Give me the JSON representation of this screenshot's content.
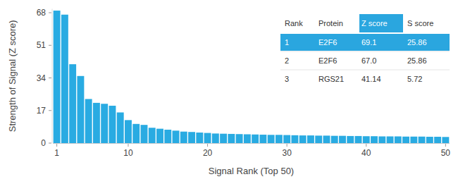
{
  "chart_data": {
    "type": "bar",
    "x_label": "Signal Rank (Top 50)",
    "y_label": "Strength of Signal (Z score)",
    "x": [
      1,
      2,
      3,
      4,
      5,
      6,
      7,
      8,
      9,
      10,
      11,
      12,
      13,
      14,
      15,
      16,
      17,
      18,
      19,
      20,
      21,
      22,
      23,
      24,
      25,
      26,
      27,
      28,
      29,
      30,
      31,
      32,
      33,
      34,
      35,
      36,
      37,
      38,
      39,
      40,
      41,
      42,
      43,
      44,
      45,
      46,
      47,
      48,
      49,
      50
    ],
    "values": [
      69.1,
      67.0,
      41.14,
      35.0,
      23.0,
      21.0,
      20.5,
      19.5,
      16.0,
      12.0,
      10.0,
      9.5,
      8.0,
      7.5,
      7.0,
      6.5,
      6.0,
      5.8,
      5.5,
      5.3,
      5.0,
      4.9,
      4.8,
      4.7,
      4.6,
      4.5,
      4.4,
      4.3,
      4.3,
      4.2,
      4.1,
      4.0,
      4.0,
      3.9,
      3.9,
      3.8,
      3.8,
      3.7,
      3.7,
      3.6,
      3.6,
      3.5,
      3.5,
      3.5,
      3.4,
      3.4,
      3.4,
      3.3,
      3.3,
      3.2
    ],
    "color": "#29abe2",
    "xlim": [
      0.5,
      50.5
    ],
    "xticks": [
      1,
      10,
      20,
      30,
      40,
      50
    ],
    "ylim": [
      0,
      70
    ],
    "yticks": [
      0,
      17,
      34,
      51,
      68
    ],
    "grid": false
  },
  "table": {
    "columns": [
      "Rank",
      "Protein",
      "Z score",
      "S score"
    ],
    "rows": [
      [
        "1",
        "E2F6",
        "69.1",
        "25.86"
      ],
      [
        "2",
        "E2F6",
        "67.0",
        "25.86"
      ],
      [
        "3",
        "RGS21",
        "41.14",
        "5.72"
      ]
    ]
  }
}
